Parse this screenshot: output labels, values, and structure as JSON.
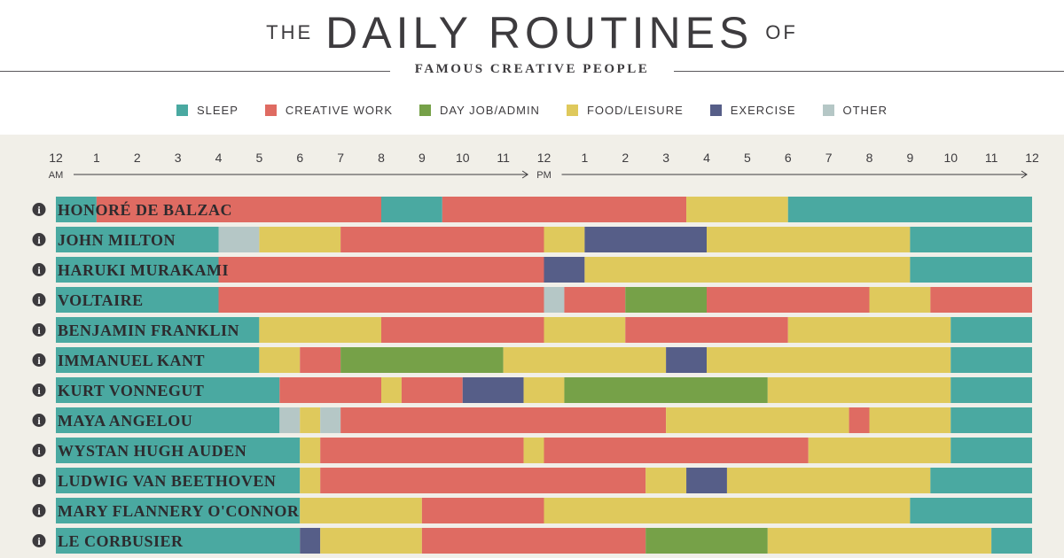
{
  "header": {
    "title_prefix": "THE",
    "title_main": "DAILY ROUTINES",
    "title_suffix": "OF",
    "subtitle": "FAMOUS CREATIVE PEOPLE"
  },
  "categories": {
    "sleep": {
      "label": "SLEEP",
      "color": "#4aa9a1"
    },
    "creative": {
      "label": "CREATIVE WORK",
      "color": "#df6b62"
    },
    "dayjob": {
      "label": "DAY JOB/ADMIN",
      "color": "#76a148"
    },
    "food": {
      "label": "FOOD/LEISURE",
      "color": "#dfc95c"
    },
    "exercise": {
      "label": "EXERCISE",
      "color": "#565e88"
    },
    "other": {
      "label": "OTHER",
      "color": "#b5c7c6"
    }
  },
  "chart_data": {
    "type": "bar",
    "orientation": "horizontal-stacked-timeline",
    "x_range": [
      0,
      24
    ],
    "x_ticks": [
      "12",
      "1",
      "2",
      "3",
      "4",
      "5",
      "6",
      "7",
      "8",
      "9",
      "10",
      "11",
      "12",
      "1",
      "2",
      "3",
      "4",
      "5",
      "6",
      "7",
      "8",
      "9",
      "10",
      "11",
      "12"
    ],
    "am_label": "AM",
    "pm_label": "PM",
    "info_icon_glyph": "i",
    "rows": [
      {
        "name": "HONORÉ DE BALZAC",
        "segments": [
          {
            "cat": "sleep",
            "start": 0,
            "end": 1
          },
          {
            "cat": "creative",
            "start": 1,
            "end": 8
          },
          {
            "cat": "sleep",
            "start": 8,
            "end": 9.5
          },
          {
            "cat": "creative",
            "start": 9.5,
            "end": 15.5
          },
          {
            "cat": "food",
            "start": 15.5,
            "end": 18
          },
          {
            "cat": "sleep",
            "start": 18,
            "end": 24
          }
        ]
      },
      {
        "name": "JOHN MILTON",
        "segments": [
          {
            "cat": "sleep",
            "start": 0,
            "end": 4
          },
          {
            "cat": "other",
            "start": 4,
            "end": 5
          },
          {
            "cat": "food",
            "start": 5,
            "end": 7
          },
          {
            "cat": "creative",
            "start": 7,
            "end": 12
          },
          {
            "cat": "food",
            "start": 12,
            "end": 13
          },
          {
            "cat": "exercise",
            "start": 13,
            "end": 16
          },
          {
            "cat": "food",
            "start": 16,
            "end": 21
          },
          {
            "cat": "sleep",
            "start": 21,
            "end": 24
          }
        ]
      },
      {
        "name": "HARUKI MURAKAMI",
        "segments": [
          {
            "cat": "sleep",
            "start": 0,
            "end": 4
          },
          {
            "cat": "creative",
            "start": 4,
            "end": 12
          },
          {
            "cat": "exercise",
            "start": 12,
            "end": 13
          },
          {
            "cat": "food",
            "start": 13,
            "end": 21
          },
          {
            "cat": "sleep",
            "start": 21,
            "end": 24
          }
        ]
      },
      {
        "name": "VOLTAIRE",
        "segments": [
          {
            "cat": "sleep",
            "start": 0,
            "end": 4
          },
          {
            "cat": "creative",
            "start": 4,
            "end": 12
          },
          {
            "cat": "other",
            "start": 12,
            "end": 12.5
          },
          {
            "cat": "creative",
            "start": 12.5,
            "end": 14
          },
          {
            "cat": "dayjob",
            "start": 14,
            "end": 16
          },
          {
            "cat": "creative",
            "start": 16,
            "end": 20
          },
          {
            "cat": "food",
            "start": 20,
            "end": 21.5
          },
          {
            "cat": "creative",
            "start": 21.5,
            "end": 24
          }
        ]
      },
      {
        "name": "BENJAMIN FRANKLIN",
        "segments": [
          {
            "cat": "sleep",
            "start": 0,
            "end": 5
          },
          {
            "cat": "food",
            "start": 5,
            "end": 8
          },
          {
            "cat": "creative",
            "start": 8,
            "end": 12
          },
          {
            "cat": "food",
            "start": 12,
            "end": 14
          },
          {
            "cat": "creative",
            "start": 14,
            "end": 18
          },
          {
            "cat": "food",
            "start": 18,
            "end": 22
          },
          {
            "cat": "sleep",
            "start": 22,
            "end": 24
          }
        ]
      },
      {
        "name": "IMMANUEL KANT",
        "segments": [
          {
            "cat": "sleep",
            "start": 0,
            "end": 5
          },
          {
            "cat": "food",
            "start": 5,
            "end": 6
          },
          {
            "cat": "creative",
            "start": 6,
            "end": 7
          },
          {
            "cat": "dayjob",
            "start": 7,
            "end": 11
          },
          {
            "cat": "food",
            "start": 11,
            "end": 15
          },
          {
            "cat": "exercise",
            "start": 15,
            "end": 16
          },
          {
            "cat": "food",
            "start": 16,
            "end": 22
          },
          {
            "cat": "sleep",
            "start": 22,
            "end": 24
          }
        ]
      },
      {
        "name": "KURT VONNEGUT",
        "segments": [
          {
            "cat": "sleep",
            "start": 0,
            "end": 5.5
          },
          {
            "cat": "creative",
            "start": 5.5,
            "end": 8
          },
          {
            "cat": "food",
            "start": 8,
            "end": 8.5
          },
          {
            "cat": "creative",
            "start": 8.5,
            "end": 10
          },
          {
            "cat": "exercise",
            "start": 10,
            "end": 11.5
          },
          {
            "cat": "food",
            "start": 11.5,
            "end": 12.5
          },
          {
            "cat": "dayjob",
            "start": 12.5,
            "end": 17.5
          },
          {
            "cat": "food",
            "start": 17.5,
            "end": 22
          },
          {
            "cat": "sleep",
            "start": 22,
            "end": 24
          }
        ]
      },
      {
        "name": "MAYA ANGELOU",
        "segments": [
          {
            "cat": "sleep",
            "start": 0,
            "end": 5.5
          },
          {
            "cat": "other",
            "start": 5.5,
            "end": 6
          },
          {
            "cat": "food",
            "start": 6,
            "end": 6.5
          },
          {
            "cat": "other",
            "start": 6.5,
            "end": 7
          },
          {
            "cat": "creative",
            "start": 7,
            "end": 15
          },
          {
            "cat": "food",
            "start": 15,
            "end": 19.5
          },
          {
            "cat": "creative",
            "start": 19.5,
            "end": 20
          },
          {
            "cat": "food",
            "start": 20,
            "end": 22
          },
          {
            "cat": "sleep",
            "start": 22,
            "end": 24
          }
        ]
      },
      {
        "name": "WYSTAN HUGH AUDEN",
        "segments": [
          {
            "cat": "sleep",
            "start": 0,
            "end": 6
          },
          {
            "cat": "food",
            "start": 6,
            "end": 6.5
          },
          {
            "cat": "creative",
            "start": 6.5,
            "end": 11.5
          },
          {
            "cat": "food",
            "start": 11.5,
            "end": 12
          },
          {
            "cat": "creative",
            "start": 12,
            "end": 18.5
          },
          {
            "cat": "food",
            "start": 18.5,
            "end": 22
          },
          {
            "cat": "sleep",
            "start": 22,
            "end": 24
          }
        ]
      },
      {
        "name": "LUDWIG VAN BEETHOVEN",
        "segments": [
          {
            "cat": "sleep",
            "start": 0,
            "end": 6
          },
          {
            "cat": "food",
            "start": 6,
            "end": 6.5
          },
          {
            "cat": "creative",
            "start": 6.5,
            "end": 14.5
          },
          {
            "cat": "food",
            "start": 14.5,
            "end": 15.5
          },
          {
            "cat": "exercise",
            "start": 15.5,
            "end": 16.5
          },
          {
            "cat": "food",
            "start": 16.5,
            "end": 21.5
          },
          {
            "cat": "sleep",
            "start": 21.5,
            "end": 24
          }
        ]
      },
      {
        "name": "MARY FLANNERY O'CONNOR",
        "segments": [
          {
            "cat": "sleep",
            "start": 0,
            "end": 6
          },
          {
            "cat": "food",
            "start": 6,
            "end": 9
          },
          {
            "cat": "creative",
            "start": 9,
            "end": 12
          },
          {
            "cat": "food",
            "start": 12,
            "end": 21
          },
          {
            "cat": "sleep",
            "start": 21,
            "end": 24
          }
        ]
      },
      {
        "name": "LE CORBUSIER",
        "segments": [
          {
            "cat": "sleep",
            "start": 0,
            "end": 6
          },
          {
            "cat": "exercise",
            "start": 6,
            "end": 6.5
          },
          {
            "cat": "food",
            "start": 6.5,
            "end": 9
          },
          {
            "cat": "creative",
            "start": 9,
            "end": 14.5
          },
          {
            "cat": "dayjob",
            "start": 14.5,
            "end": 17.5
          },
          {
            "cat": "food",
            "start": 17.5,
            "end": 23
          },
          {
            "cat": "sleep",
            "start": 23,
            "end": 24
          }
        ]
      }
    ]
  }
}
